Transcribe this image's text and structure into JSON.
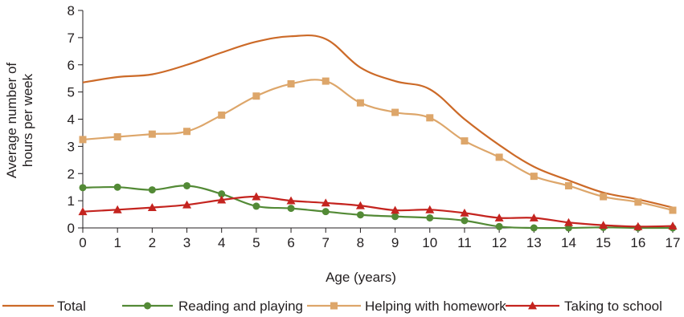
{
  "chart_data": {
    "type": "line",
    "title": "",
    "xlabel": "Age (years)",
    "ylabel_lines": [
      "Average number of",
      "hours per week"
    ],
    "x": [
      0,
      1,
      2,
      3,
      4,
      5,
      6,
      7,
      8,
      9,
      10,
      11,
      12,
      13,
      14,
      15,
      16,
      17
    ],
    "xlim": [
      0,
      17
    ],
    "ylim": [
      0,
      8
    ],
    "yticks": [
      0,
      1,
      2,
      3,
      4,
      5,
      6,
      7,
      8
    ],
    "grid": false,
    "legend_position": "bottom",
    "series": [
      {
        "name": "Total",
        "color": "#cc6a28",
        "marker": "none",
        "values": [
          5.35,
          5.55,
          5.65,
          6.0,
          6.45,
          6.85,
          7.05,
          6.95,
          5.9,
          5.4,
          5.1,
          4.0,
          3.05,
          2.25,
          1.75,
          1.3,
          1.05,
          0.75
        ]
      },
      {
        "name": "Reading and playing",
        "color": "#538a36",
        "marker": "circle",
        "values": [
          1.48,
          1.5,
          1.4,
          1.55,
          1.25,
          0.8,
          0.72,
          0.6,
          0.48,
          0.42,
          0.37,
          0.27,
          0.05,
          0.0,
          0.0,
          0.02,
          0.0,
          0.0
        ]
      },
      {
        "name": "Helping with homework",
        "color": "#dda66a",
        "marker": "square",
        "values": [
          3.25,
          3.35,
          3.45,
          3.55,
          4.15,
          4.85,
          5.3,
          5.4,
          4.6,
          4.25,
          4.05,
          3.2,
          2.6,
          1.9,
          1.55,
          1.15,
          0.95,
          0.65
        ]
      },
      {
        "name": "Taking to school",
        "color": "#c4241f",
        "marker": "triangle",
        "values": [
          0.6,
          0.67,
          0.75,
          0.85,
          1.03,
          1.15,
          1.0,
          0.92,
          0.82,
          0.65,
          0.67,
          0.55,
          0.37,
          0.37,
          0.2,
          0.1,
          0.05,
          0.07
        ]
      }
    ]
  }
}
